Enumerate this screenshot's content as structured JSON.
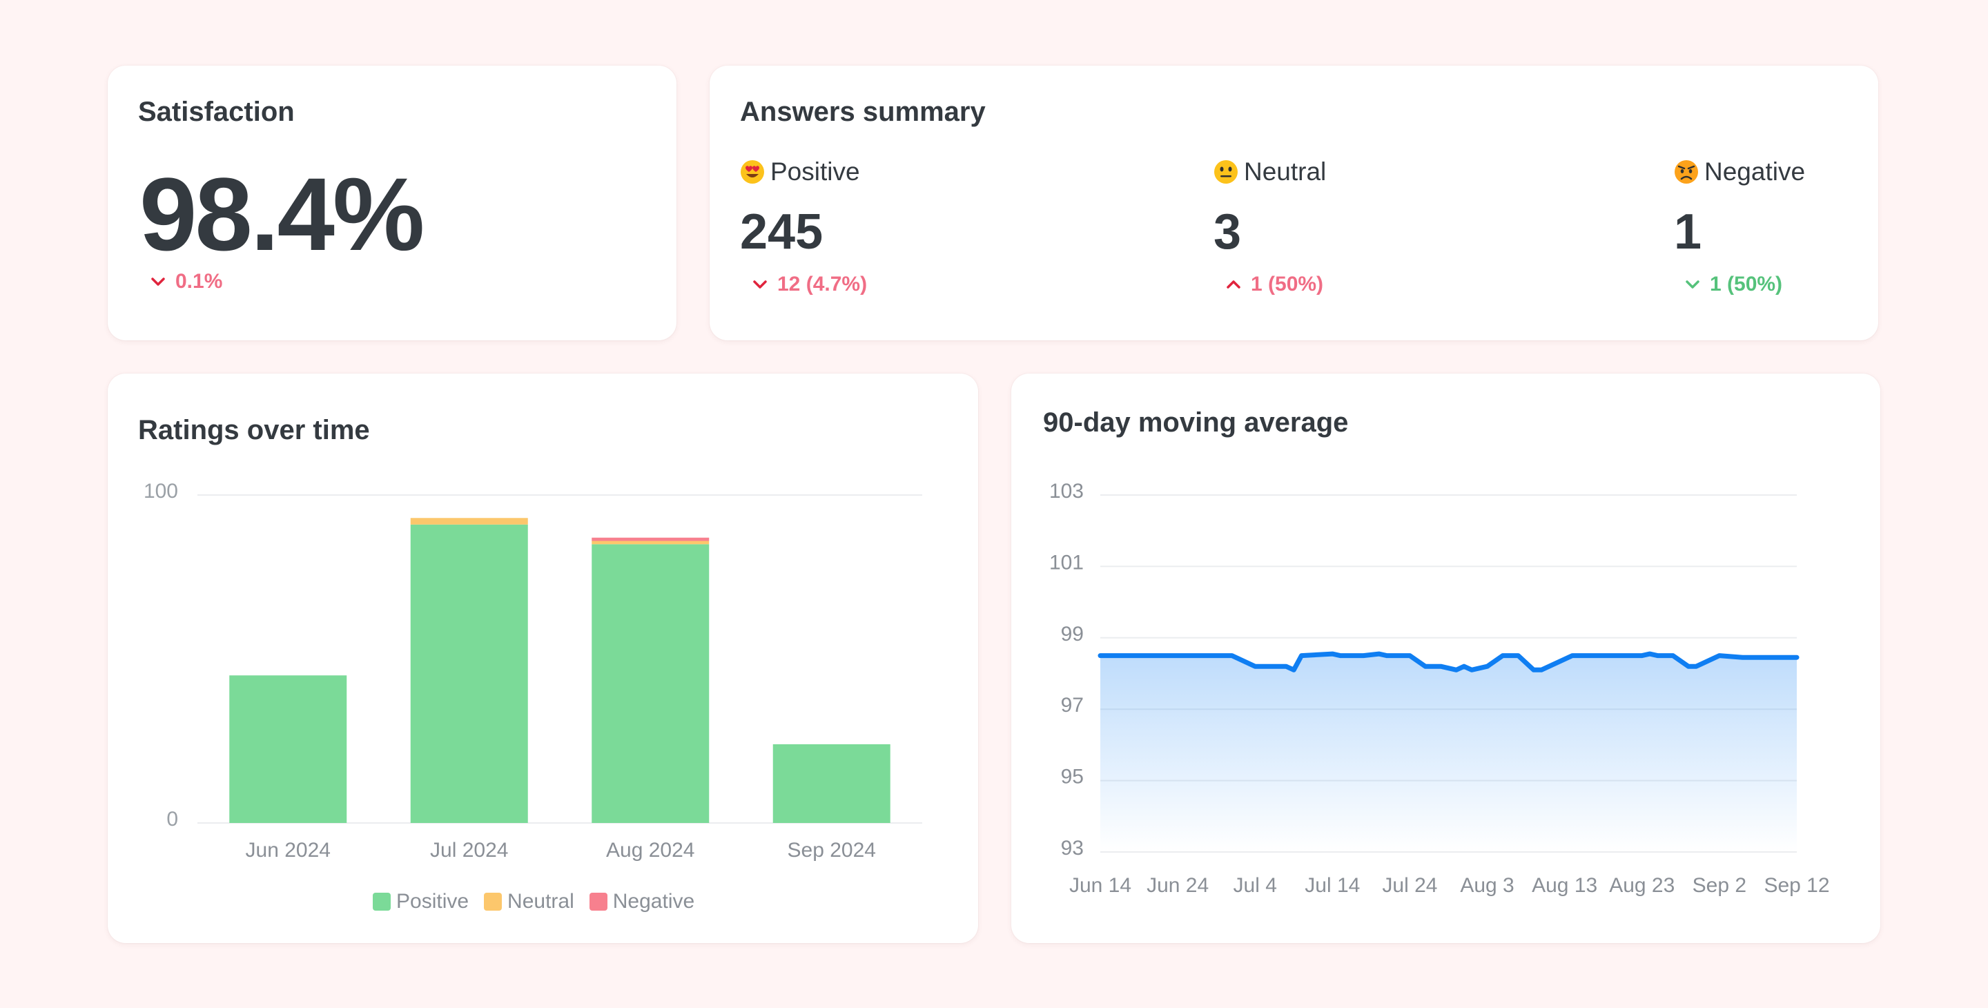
{
  "colors": {
    "positive": "#7bda98",
    "neutral": "#fcc76c",
    "negative": "#f7808e",
    "line": "#0f7ef2",
    "down_red": "#f06d85",
    "up_red_arrow": "#e0243d",
    "green": "#55c27b"
  },
  "satisfaction": {
    "title": "Satisfaction",
    "value": "98.4%",
    "delta": "0.1%",
    "delta_direction": "down"
  },
  "answers_summary": {
    "title": "Answers summary",
    "items": [
      {
        "label": "Positive",
        "emoji": "heart-eyes-emoji",
        "count": "245",
        "delta": "12 (4.7%)",
        "delta_direction": "down",
        "delta_color": "red"
      },
      {
        "label": "Neutral",
        "emoji": "neutral-face-emoji",
        "count": "3",
        "delta": "1 (50%)",
        "delta_direction": "up",
        "delta_color": "red"
      },
      {
        "label": "Negative",
        "emoji": "angry-face-emoji",
        "count": "1",
        "delta": "1 (50%)",
        "delta_direction": "down",
        "delta_color": "green"
      }
    ]
  },
  "chart_data": [
    {
      "type": "bar",
      "stacked": true,
      "title": "Ratings over time",
      "categories": [
        "Jun 2024",
        "Jul 2024",
        "Aug 2024",
        "Sep 2024"
      ],
      "series": [
        {
          "name": "Positive",
          "values": [
            45,
            91,
            85,
            24
          ]
        },
        {
          "name": "Neutral",
          "values": [
            0,
            2,
            1,
            0
          ]
        },
        {
          "name": "Negative",
          "values": [
            0,
            0,
            1,
            0
          ]
        }
      ],
      "ylim": [
        0,
        100
      ],
      "yticks": [
        "0",
        "100"
      ],
      "grid": true,
      "legend": "bottom-center"
    },
    {
      "type": "area",
      "title": "90-day moving average",
      "x_ticks": [
        "Jun 14",
        "Jun 24",
        "Jul 4",
        "Jul 14",
        "Jul 24",
        "Aug 3",
        "Aug 13",
        "Aug 23",
        "Sep 2",
        "Sep 12"
      ],
      "x": [
        "2024-06-14",
        "2024-06-20",
        "2024-06-26",
        "2024-07-01",
        "2024-07-04",
        "2024-07-08",
        "2024-07-09",
        "2024-07-10",
        "2024-07-14",
        "2024-07-15",
        "2024-07-18",
        "2024-07-20",
        "2024-07-21",
        "2024-07-24",
        "2024-07-26",
        "2024-07-27",
        "2024-07-28",
        "2024-07-30",
        "2024-07-31",
        "2024-08-01",
        "2024-08-03",
        "2024-08-05",
        "2024-08-07",
        "2024-08-09",
        "2024-08-10",
        "2024-08-14",
        "2024-08-19",
        "2024-08-23",
        "2024-08-24",
        "2024-08-25",
        "2024-08-27",
        "2024-08-29",
        "2024-08-30",
        "2024-09-02",
        "2024-09-05",
        "2024-09-08",
        "2024-09-12"
      ],
      "values": [
        98.5,
        98.5,
        98.5,
        98.5,
        98.2,
        98.2,
        98.1,
        98.5,
        98.55,
        98.5,
        98.5,
        98.55,
        98.5,
        98.5,
        98.2,
        98.2,
        98.2,
        98.1,
        98.2,
        98.1,
        98.2,
        98.5,
        98.5,
        98.1,
        98.1,
        98.5,
        98.5,
        98.5,
        98.55,
        98.5,
        98.5,
        98.2,
        98.2,
        98.5,
        98.45,
        98.45,
        98.45
      ],
      "ylim": [
        93,
        103
      ],
      "yticks": [
        "93",
        "95",
        "97",
        "99",
        "101",
        "103"
      ],
      "grid": true
    }
  ]
}
